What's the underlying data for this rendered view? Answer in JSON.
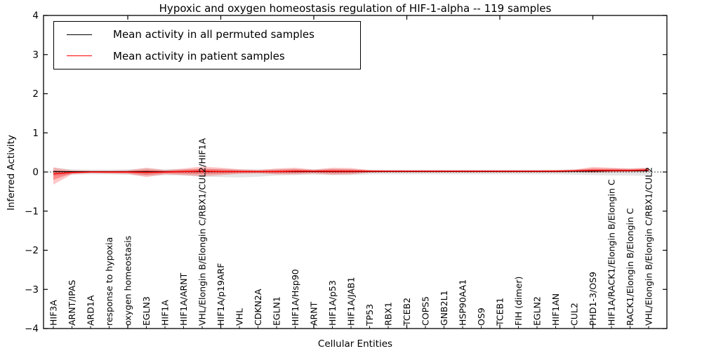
{
  "title": "Hypoxic and oxygen homeostasis regulation of HIF-1-alpha -- 119 samples",
  "axes": {
    "ylabel": "Inferred Activity",
    "xlabel": "Cellular Entities",
    "ytick_labels": [
      "4",
      "3",
      "2",
      "1",
      "0",
      "−1",
      "−2",
      "−3",
      "−4"
    ]
  },
  "legend": {
    "items": [
      {
        "label": "Mean activity in all permuted samples",
        "color": "#000000"
      },
      {
        "label": "Mean activity in patient samples",
        "color": "#ff0000"
      }
    ]
  },
  "colors": {
    "permuted_line": "#000000",
    "patient_line": "#ff0000",
    "permuted_band": "#000000",
    "patient_band": "#ff0000",
    "frame": "#000000"
  },
  "chart_data": {
    "type": "line",
    "title": "Hypoxic and oxygen homeostasis regulation of HIF-1-alpha -- 119 samples",
    "xlabel": "Cellular Entities",
    "ylabel": "Inferred Activity",
    "ylim": [
      -4,
      4
    ],
    "yticks": [
      4,
      3,
      2,
      1,
      0,
      -1,
      -2,
      -3,
      -4
    ],
    "grid": false,
    "legend_position": "upper left",
    "zero_reference_line": true,
    "top_major_tick_indices": [
      4,
      9,
      14,
      19,
      24,
      29
    ],
    "categories": [
      "HIF3A",
      "ARNT/IPAS",
      "ARD1A",
      "response to hypoxia",
      "oxygen homeostasis",
      "EGLN3",
      "HIF1A",
      "HIF1A/ARNT",
      "VHL/Elongin B/Elongin C/RBX1/CUL2/HIF1A",
      "HIF1A/p19ARF",
      "VHL",
      "CDKN2A",
      "EGLN1",
      "HIF1A/Hsp90",
      "ARNT",
      "HIF1A/p53",
      "HIF1A/JAB1",
      "TP53",
      "RBX1",
      "TCEB2",
      "COPS5",
      "GNB2L1",
      "HSP90AA1",
      "OS9",
      "TCEB1",
      "FIH (dimer)",
      "EGLN2",
      "HIF1AN",
      "CUL2",
      "PHD1-3/OS9",
      "HIF1A/RACK1/Elongin B/Elongin C",
      "RACK1/Elongin B/Elongin C",
      "VHL/Elongin B/Elongin C/RBX1/CUL2"
    ],
    "series": [
      {
        "name": "Mean activity in all permuted samples",
        "color": "#000000",
        "values": [
          0.01,
          0.01,
          0.01,
          0.01,
          0.01,
          0.01,
          0.01,
          0.01,
          0.01,
          0.01,
          0.01,
          0.01,
          0.01,
          0.01,
          0.01,
          0.01,
          0.01,
          0.01,
          0.01,
          0.01,
          0.01,
          0.01,
          0.01,
          0.01,
          0.01,
          0.01,
          0.01,
          0.01,
          0.02,
          0.02,
          0.03,
          0.03,
          0.03
        ]
      },
      {
        "name": "Mean activity in patient samples",
        "color": "#ff0000",
        "values": [
          -0.05,
          -0.01,
          0,
          0,
          0,
          -0.01,
          0,
          0.01,
          0.02,
          0.01,
          0.01,
          0.01,
          0.01,
          0.02,
          0.02,
          0.02,
          0.02,
          0.02,
          0.02,
          0.02,
          0.02,
          0.02,
          0.02,
          0.02,
          0.02,
          0.02,
          0.02,
          0.02,
          0.03,
          0.04,
          0.04,
          0.04,
          0.05
        ]
      }
    ],
    "bands": [
      {
        "name": "permuted-samples-std-band",
        "color": "#000000",
        "opacity": 0.1,
        "upper": [
          0.1,
          0.07,
          0.06,
          0.06,
          0.07,
          0.09,
          0.07,
          0.07,
          0.08,
          0.08,
          0.07,
          0.07,
          0.07,
          0.08,
          0.07,
          0.08,
          0.07,
          0.06,
          0.06,
          0.06,
          0.06,
          0.06,
          0.06,
          0.06,
          0.06,
          0.06,
          0.06,
          0.06,
          0.07,
          0.08,
          0.09,
          0.09,
          0.1
        ],
        "lower": [
          -0.1,
          -0.07,
          -0.06,
          -0.06,
          -0.07,
          -0.1,
          -0.08,
          -0.09,
          -0.12,
          -0.13,
          -0.14,
          -0.12,
          -0.09,
          -0.08,
          -0.07,
          -0.08,
          -0.08,
          -0.06,
          -0.06,
          -0.06,
          -0.06,
          -0.06,
          -0.06,
          -0.06,
          -0.06,
          -0.06,
          -0.06,
          -0.06,
          -0.07,
          -0.08,
          -0.09,
          -0.09,
          -0.1
        ]
      },
      {
        "name": "patient-samples-std-band",
        "color": "#ff0000",
        "opacity": 0.22,
        "upper": [
          0.12,
          0.04,
          0.03,
          0.03,
          0.04,
          0.11,
          0.05,
          0.09,
          0.14,
          0.11,
          0.07,
          0.05,
          0.09,
          0.11,
          0.06,
          0.11,
          0.1,
          0.05,
          0.04,
          0.04,
          0.04,
          0.04,
          0.04,
          0.04,
          0.04,
          0.04,
          0.04,
          0.05,
          0.06,
          0.13,
          0.11,
          0.09,
          0.11
        ],
        "lower": [
          -0.32,
          -0.06,
          -0.03,
          -0.04,
          -0.05,
          -0.13,
          -0.06,
          -0.08,
          -0.11,
          -0.08,
          -0.05,
          -0.04,
          -0.06,
          -0.06,
          -0.04,
          -0.07,
          -0.06,
          -0.02,
          -0.01,
          -0.01,
          -0.01,
          -0.01,
          -0.01,
          -0.01,
          -0.01,
          -0.01,
          -0.01,
          -0.01,
          0.0,
          -0.02,
          -0.01,
          0.0,
          0.01
        ]
      }
    ]
  }
}
